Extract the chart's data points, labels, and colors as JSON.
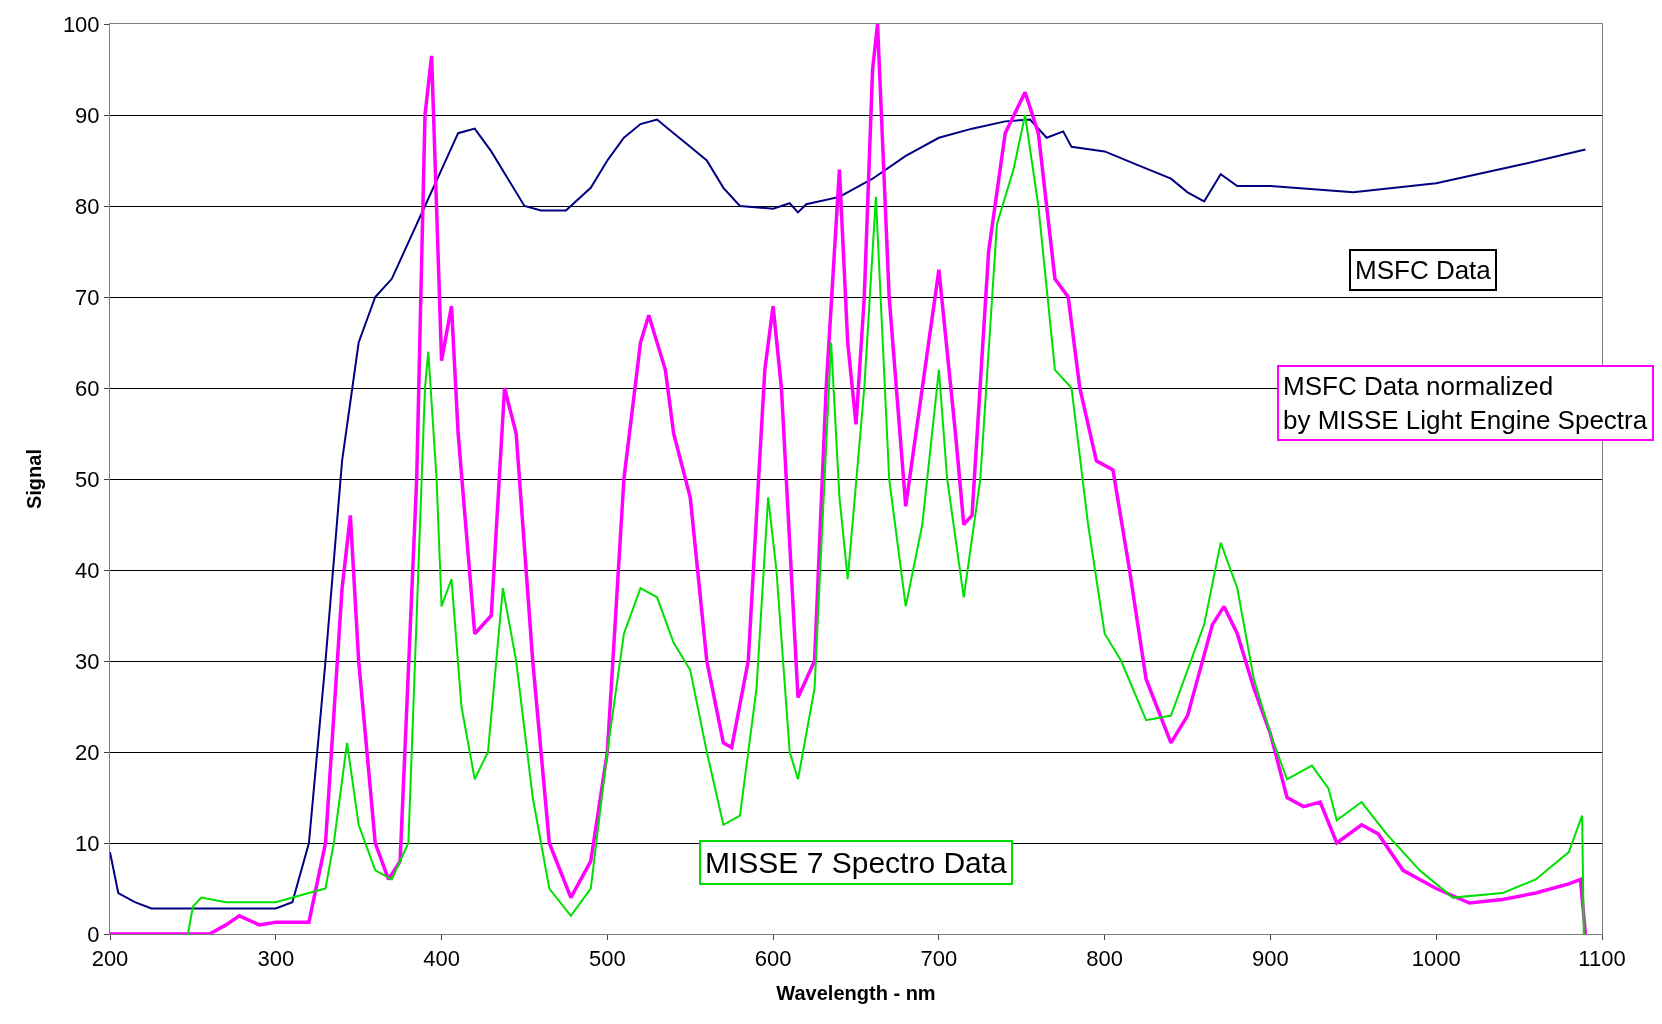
{
  "chart_data": {
    "type": "line",
    "xlabel": "Wavelength - nm",
    "ylabel": "Signal",
    "xlim": [
      200,
      1100
    ],
    "xticks": [
      200,
      300,
      400,
      500,
      600,
      700,
      800,
      900,
      1000,
      1100
    ],
    "ylim": [
      0,
      100
    ],
    "yticks": [
      0,
      10,
      20,
      30,
      40,
      50,
      60,
      70,
      80,
      90,
      100
    ],
    "grid": "y",
    "legend": false,
    "marker": "none",
    "line_style": "solid",
    "series": [
      {
        "name": "MSFC Data",
        "color": "#000080",
        "x": [
          200,
          205,
          215,
          225,
          250,
          300,
          310,
          320,
          330,
          340,
          350,
          360,
          370,
          380,
          390,
          400,
          410,
          420,
          430,
          440,
          450,
          460,
          475,
          490,
          500,
          510,
          520,
          530,
          540,
          550,
          560,
          570,
          580,
          600,
          610,
          615,
          620,
          640,
          660,
          680,
          700,
          720,
          740,
          755,
          765,
          775,
          780,
          800,
          820,
          840,
          850,
          860,
          870,
          880,
          900,
          950,
          1000,
          1050,
          1090
        ],
        "values": [
          9,
          4.5,
          3.5,
          2.8,
          2.8,
          2.8,
          3.5,
          10,
          30,
          52,
          65,
          70,
          72,
          76,
          80,
          84,
          88,
          88.5,
          86,
          83,
          80,
          79.5,
          79.5,
          82,
          85,
          87.5,
          89,
          89.5,
          88,
          86.5,
          85,
          82,
          80,
          79.7,
          80.3,
          79.3,
          80.2,
          81,
          83,
          85.5,
          87.5,
          88.5,
          89.3,
          89.5,
          87.5,
          88.2,
          86.5,
          86,
          84.5,
          83,
          81.5,
          80.5,
          83.5,
          82.2,
          82.2,
          81.5,
          82.5,
          84.5,
          86.2
        ]
      },
      {
        "name": "MSFC Data normalized\nby MISSE Light Engine Spectra",
        "color": "#ff00ff",
        "x": [
          200,
          260,
          270,
          278,
          290,
          300,
          320,
          330,
          340,
          345,
          350,
          360,
          368,
          375,
          385,
          390,
          394,
          400,
          406,
          410,
          420,
          430,
          438,
          445,
          455,
          465,
          478,
          490,
          500,
          510,
          520,
          525,
          535,
          540,
          550,
          560,
          570,
          575,
          585,
          595,
          600,
          605,
          615,
          625,
          632,
          640,
          645,
          650,
          655,
          660,
          663,
          670,
          680,
          690,
          700,
          710,
          715,
          720,
          730,
          740,
          752,
          760,
          770,
          778,
          785,
          795,
          805,
          815,
          825,
          840,
          850,
          865,
          872,
          880,
          890,
          900,
          910,
          920,
          930,
          940,
          955,
          965,
          980,
          1000,
          1020,
          1040,
          1060,
          1080,
          1087,
          1090
        ],
        "values": [
          0,
          0,
          1,
          2,
          1,
          1.3,
          1.3,
          10,
          38,
          46,
          30,
          10,
          6,
          8,
          50,
          90,
          96.5,
          63,
          69,
          55,
          33,
          35,
          60,
          55,
          30,
          10,
          4,
          8,
          20,
          50,
          65,
          68,
          62,
          55,
          48,
          30,
          21,
          20.5,
          30,
          62,
          69,
          60,
          26,
          30,
          60,
          84,
          65,
          56,
          70,
          95,
          100,
          70,
          47,
          60,
          73,
          55,
          45,
          46,
          75,
          88,
          92.5,
          88,
          72,
          70,
          60,
          52,
          51,
          40,
          28,
          21,
          24,
          34,
          36,
          33,
          27,
          22,
          15,
          14,
          14.5,
          10,
          12,
          11,
          7,
          5,
          3.4,
          3.8,
          4.5,
          5.5,
          6,
          0
        ]
      },
      {
        "name": "MISSE 7 Spectro Data",
        "color": "#00e000",
        "x": [
          247,
          250,
          255,
          270,
          300,
          320,
          330,
          335,
          343,
          350,
          360,
          370,
          380,
          390,
          392,
          397,
          400,
          406,
          412,
          420,
          428,
          437,
          445,
          455,
          465,
          478,
          490,
          500,
          510,
          520,
          530,
          540,
          550,
          560,
          570,
          580,
          590,
          597,
          602,
          610,
          615,
          625,
          635,
          640,
          645,
          655,
          662,
          670,
          680,
          690,
          700,
          705,
          715,
          725,
          735,
          745,
          752,
          760,
          770,
          780,
          790,
          800,
          810,
          825,
          840,
          860,
          870,
          880,
          890,
          900,
          910,
          925,
          935,
          940,
          955,
          970,
          990,
          1010,
          1040,
          1060,
          1080,
          1088,
          1089
        ],
        "values": [
          0,
          3,
          4,
          3.5,
          3.5,
          4.5,
          5,
          10,
          21,
          12,
          7,
          6,
          10,
          60,
          64,
          50,
          36,
          39,
          25,
          17,
          20,
          38,
          30,
          15,
          5,
          2,
          5,
          20,
          33,
          38,
          37,
          32,
          29,
          20,
          12,
          13,
          27,
          48,
          40,
          20,
          17,
          27,
          65,
          48,
          39,
          60,
          81,
          50,
          36,
          45,
          62,
          50,
          37,
          50,
          78,
          84,
          90,
          80,
          62,
          60,
          45,
          33,
          30,
          23.5,
          24,
          34,
          43,
          38,
          28,
          22,
          17,
          18.5,
          16,
          12.5,
          14.5,
          11,
          7,
          4,
          4.5,
          6,
          9,
          13,
          0
        ]
      }
    ]
  }
}
